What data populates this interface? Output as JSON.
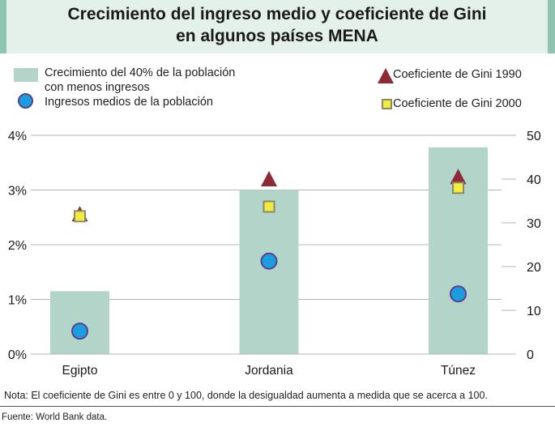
{
  "title": {
    "line1": "Crecimiento del ingreso medio y coeficiente de Gini",
    "line2": "en algunos países MENA"
  },
  "legend": {
    "bar_label_line1": "Crecimiento del 40% de la población",
    "bar_label_line2": "con menos ingresos",
    "circle_label": "Ingresos medios de la población",
    "triangle_label": "Coeficiente de Gini 1990",
    "square_label": "Coeficiente de Gini 2000"
  },
  "note": "Nota: El coeficiente de Gini es entre 0 y 100, donde la desigualdad aumenta a medida que se acerca a 100.",
  "source": "Fuente: World Bank data.",
  "colors": {
    "bar": "#b3d4c8",
    "circle_fill": "#1a9ee0",
    "circle_stroke": "#5a3f8a",
    "triangle": "#8e2a33",
    "square_fill": "#f4ec3c",
    "square_stroke": "#8a8a6a",
    "grid": "#b5b5b5",
    "title_bg": "#e4f0ea",
    "title_border": "#8fc4b1"
  },
  "chart_data": {
    "type": "bar",
    "title": "Crecimiento del ingreso medio y coeficiente de Gini en algunos países MENA",
    "categories": [
      "Egipto",
      "Jordania",
      "Túnez"
    ],
    "left_axis": {
      "label": "",
      "range": [
        0,
        4
      ],
      "ticks": [
        0,
        1,
        2,
        3,
        4
      ],
      "tick_labels": [
        "0%",
        "1%",
        "2%",
        "3%",
        "4%"
      ]
    },
    "right_axis": {
      "label": "",
      "range": [
        0,
        50
      ],
      "ticks": [
        0,
        10,
        20,
        30,
        40,
        50
      ],
      "tick_labels": [
        "0",
        "10",
        "20",
        "30",
        "40",
        "50"
      ]
    },
    "grid": true,
    "legend_position": "top",
    "series": [
      {
        "name": "Crecimiento del 40% de la población con menos ingresos",
        "kind": "bar",
        "axis": "left",
        "unit": "%",
        "values": [
          1.15,
          3.0,
          3.78
        ]
      },
      {
        "name": "Ingresos medios de la población",
        "kind": "circle",
        "axis": "left",
        "unit": "%",
        "values": [
          0.42,
          1.7,
          1.1
        ]
      },
      {
        "name": "Coeficiente de Gini 1990",
        "kind": "triangle",
        "axis": "right",
        "values": [
          32.0,
          40.0,
          40.5
        ]
      },
      {
        "name": "Coeficiente de Gini 2000",
        "kind": "square",
        "axis": "right",
        "values": [
          31.5,
          33.7,
          38.0
        ]
      }
    ]
  }
}
